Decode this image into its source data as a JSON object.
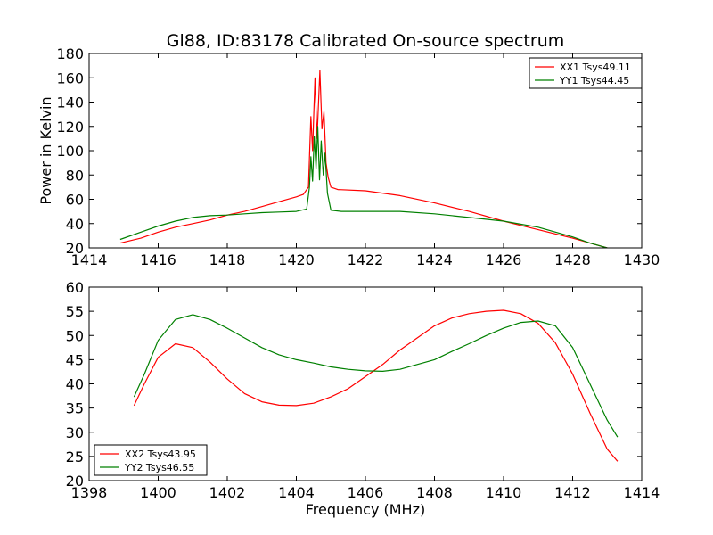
{
  "chart_data": [
    {
      "type": "line",
      "title": "Gl88, ID:83178 Calibrated On-source spectrum",
      "xlabel": "",
      "ylabel": "Power in Kelvin",
      "xlim": [
        1414,
        1430
      ],
      "ylim": [
        20,
        180
      ],
      "xticks": [
        1414,
        1416,
        1418,
        1420,
        1422,
        1424,
        1426,
        1428,
        1430
      ],
      "yticks": [
        20,
        40,
        60,
        80,
        100,
        120,
        140,
        160,
        180
      ],
      "grid": false,
      "legend_position": "top-right",
      "series": [
        {
          "name": "XX1 Tsys49.11",
          "color": "#ff0000",
          "points": [
            [
              1414.9,
              24
            ],
            [
              1415.5,
              28
            ],
            [
              1416.0,
              33
            ],
            [
              1416.5,
              37
            ],
            [
              1417.0,
              40
            ],
            [
              1417.5,
              43
            ],
            [
              1418.0,
              47
            ],
            [
              1418.5,
              50
            ],
            [
              1419.0,
              54
            ],
            [
              1419.5,
              58
            ],
            [
              1420.0,
              62
            ],
            [
              1420.2,
              64
            ],
            [
              1420.35,
              70
            ],
            [
              1420.42,
              128
            ],
            [
              1420.47,
              100
            ],
            [
              1420.54,
              160
            ],
            [
              1420.6,
              110
            ],
            [
              1420.68,
              166
            ],
            [
              1420.74,
              118
            ],
            [
              1420.8,
              132
            ],
            [
              1420.86,
              90
            ],
            [
              1420.92,
              78
            ],
            [
              1421.0,
              70
            ],
            [
              1421.2,
              68
            ],
            [
              1422.0,
              67
            ],
            [
              1423.0,
              63
            ],
            [
              1424.0,
              57
            ],
            [
              1425.0,
              50
            ],
            [
              1426.0,
              42
            ],
            [
              1427.0,
              35
            ],
            [
              1428.0,
              28
            ],
            [
              1428.5,
              24
            ],
            [
              1429.0,
              20
            ]
          ]
        },
        {
          "name": "YY1 Tsys44.45",
          "color": "#008000",
          "points": [
            [
              1414.9,
              27
            ],
            [
              1415.5,
              33
            ],
            [
              1416.0,
              38
            ],
            [
              1416.5,
              42
            ],
            [
              1417.0,
              45
            ],
            [
              1417.5,
              46.5
            ],
            [
              1418.0,
              47
            ],
            [
              1418.5,
              48
            ],
            [
              1419.0,
              49
            ],
            [
              1419.5,
              49.5
            ],
            [
              1420.0,
              50
            ],
            [
              1420.3,
              52
            ],
            [
              1420.38,
              70
            ],
            [
              1420.42,
              95
            ],
            [
              1420.47,
              75
            ],
            [
              1420.52,
              112
            ],
            [
              1420.57,
              85
            ],
            [
              1420.62,
              120
            ],
            [
              1420.67,
              76
            ],
            [
              1420.72,
              108
            ],
            [
              1420.78,
              80
            ],
            [
              1420.83,
              98
            ],
            [
              1420.9,
              65
            ],
            [
              1421.0,
              51
            ],
            [
              1421.3,
              50
            ],
            [
              1422.0,
              50
            ],
            [
              1423.0,
              50
            ],
            [
              1424.0,
              48
            ],
            [
              1425.0,
              45
            ],
            [
              1426.0,
              42
            ],
            [
              1427.0,
              37
            ],
            [
              1428.0,
              29
            ],
            [
              1428.5,
              24
            ],
            [
              1429.0,
              20
            ]
          ]
        }
      ]
    },
    {
      "type": "line",
      "title": "",
      "xlabel": "Frequency (MHz)",
      "ylabel": "",
      "xlim": [
        1398,
        1414
      ],
      "ylim": [
        20,
        60
      ],
      "xticks": [
        1398,
        1400,
        1402,
        1404,
        1406,
        1408,
        1410,
        1412,
        1414
      ],
      "yticks": [
        20,
        25,
        30,
        35,
        40,
        45,
        50,
        55,
        60
      ],
      "grid": false,
      "legend_position": "bottom-left",
      "series": [
        {
          "name": "XX2 Tsys43.95",
          "color": "#ff0000",
          "points": [
            [
              1399.3,
              35.5
            ],
            [
              1399.6,
              40
            ],
            [
              1400.0,
              45.5
            ],
            [
              1400.5,
              48.3
            ],
            [
              1401.0,
              47.5
            ],
            [
              1401.5,
              44.5
            ],
            [
              1402.0,
              41
            ],
            [
              1402.5,
              38
            ],
            [
              1403.0,
              36.3
            ],
            [
              1403.5,
              35.6
            ],
            [
              1404.0,
              35.5
            ],
            [
              1404.5,
              36
            ],
            [
              1405.0,
              37.3
            ],
            [
              1405.5,
              39
            ],
            [
              1406.0,
              41.5
            ],
            [
              1406.5,
              44
            ],
            [
              1407.0,
              47
            ],
            [
              1407.5,
              49.5
            ],
            [
              1408.0,
              52
            ],
            [
              1408.5,
              53.6
            ],
            [
              1409.0,
              54.5
            ],
            [
              1409.5,
              55
            ],
            [
              1410.0,
              55.2
            ],
            [
              1410.5,
              54.5
            ],
            [
              1411.0,
              52.5
            ],
            [
              1411.5,
              48.5
            ],
            [
              1412.0,
              42
            ],
            [
              1412.5,
              34
            ],
            [
              1413.0,
              26.5
            ],
            [
              1413.3,
              24
            ]
          ]
        },
        {
          "name": "YY2 Tsys46.55",
          "color": "#008000",
          "points": [
            [
              1399.3,
              37.3
            ],
            [
              1399.6,
              42
            ],
            [
              1400.0,
              49
            ],
            [
              1400.5,
              53.3
            ],
            [
              1401.0,
              54.3
            ],
            [
              1401.5,
              53.3
            ],
            [
              1402.0,
              51.5
            ],
            [
              1402.5,
              49.5
            ],
            [
              1403.0,
              47.5
            ],
            [
              1403.5,
              46
            ],
            [
              1404.0,
              45
            ],
            [
              1404.5,
              44.3
            ],
            [
              1405.0,
              43.5
            ],
            [
              1405.5,
              43
            ],
            [
              1406.0,
              42.7
            ],
            [
              1406.5,
              42.6
            ],
            [
              1407.0,
              43
            ],
            [
              1407.5,
              44
            ],
            [
              1408.0,
              45
            ],
            [
              1408.5,
              46.7
            ],
            [
              1409.0,
              48.3
            ],
            [
              1409.5,
              50
            ],
            [
              1410.0,
              51.5
            ],
            [
              1410.5,
              52.7
            ],
            [
              1411.0,
              53
            ],
            [
              1411.5,
              52
            ],
            [
              1412.0,
              47.5
            ],
            [
              1412.5,
              40
            ],
            [
              1413.0,
              32.5
            ],
            [
              1413.3,
              29
            ]
          ]
        }
      ]
    }
  ]
}
